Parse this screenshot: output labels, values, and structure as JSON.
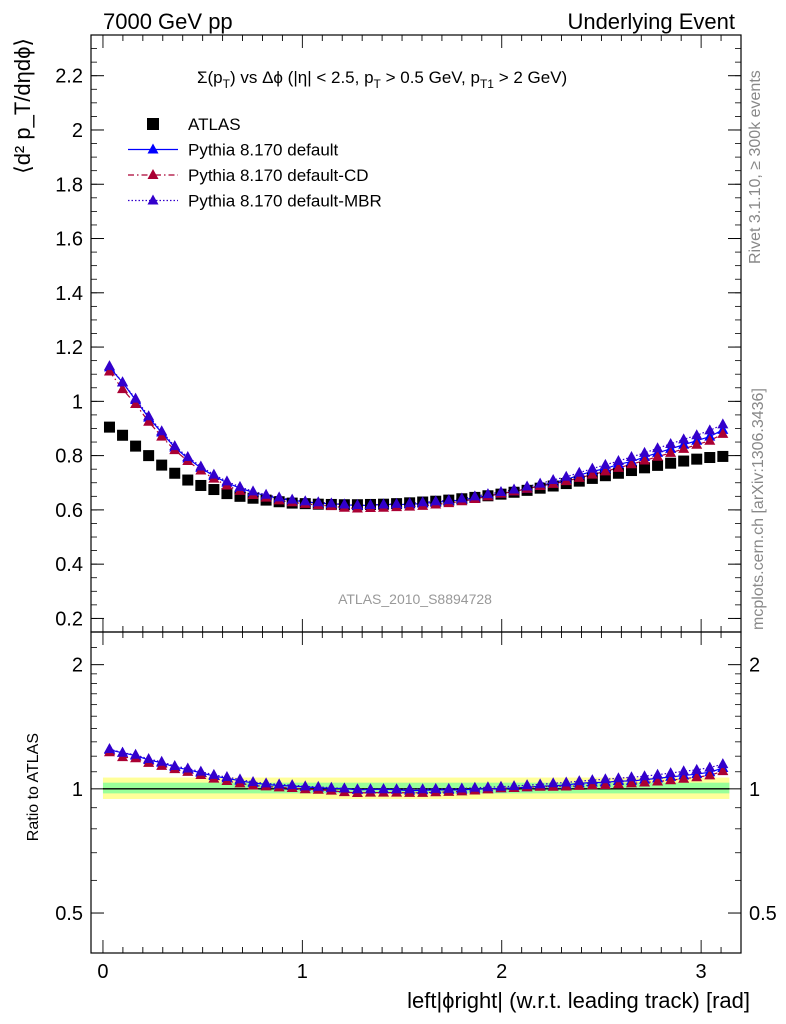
{
  "header": {
    "left": "7000 GeV pp",
    "right": "Underlying Event"
  },
  "side_labels": {
    "rivet": "Rivet 3.1.10, ≥ 300k events",
    "mcplots": "mcplots.cern.ch [arXiv:1306.3436]"
  },
  "annotation": {
    "analysis": "ATLAS_2010_S8894728"
  },
  "colors": {
    "atlas": "#000000",
    "default": "#0000ff",
    "default_cd": "#aa0033",
    "default_mbr": "#3300cc",
    "band_yellow": "#ffff99",
    "band_green": "#99ff99"
  },
  "chart_data": [
    {
      "type": "scatter",
      "panel": "main",
      "title": "Σ(p_T) vs Δϕ (|η| < 2.5, p_T > 0.5 GeV, p_T1 > 2 GeV)",
      "ylabel": "⟨d² p_T/dηdϕ⟩",
      "xlim": [
        -0.06,
        3.2
      ],
      "ylim": [
        0.15,
        2.35
      ],
      "yticks": [
        0.2,
        0.4,
        0.6,
        0.8,
        1.0,
        1.2,
        1.4,
        1.6,
        1.8,
        2.0,
        2.2
      ],
      "ytick_labels": [
        "0.2",
        "0.4",
        "0.6",
        "0.8",
        "1",
        "1.2",
        "1.4",
        "1.6",
        "1.8",
        "2",
        "2.2"
      ],
      "legend_position": "top-left",
      "x": [
        0.0327,
        0.0982,
        0.1636,
        0.2291,
        0.2945,
        0.36,
        0.4254,
        0.4909,
        0.5563,
        0.6218,
        0.6872,
        0.7527,
        0.8181,
        0.8836,
        0.949,
        1.0145,
        1.0799,
        1.1454,
        1.2108,
        1.2763,
        1.3417,
        1.4072,
        1.4726,
        1.5381,
        1.6035,
        1.669,
        1.7344,
        1.7999,
        1.8653,
        1.9308,
        1.9962,
        2.0617,
        2.1271,
        2.1926,
        2.258,
        2.3235,
        2.3889,
        2.4544,
        2.5198,
        2.5853,
        2.6507,
        2.7162,
        2.7816,
        2.8471,
        2.9125,
        2.978,
        3.0434,
        3.1089
      ],
      "series": [
        {
          "name": "ATLAS",
          "marker": "square",
          "values": [
            0.905,
            0.875,
            0.835,
            0.8,
            0.765,
            0.735,
            0.71,
            0.69,
            0.675,
            0.66,
            0.65,
            0.643,
            0.636,
            0.63,
            0.625,
            0.623,
            0.621,
            0.62,
            0.619,
            0.619,
            0.62,
            0.621,
            0.623,
            0.626,
            0.629,
            0.632,
            0.636,
            0.641,
            0.646,
            0.652,
            0.658,
            0.665,
            0.672,
            0.68,
            0.688,
            0.697,
            0.706,
            0.716,
            0.726,
            0.735,
            0.745,
            0.755,
            0.764,
            0.772,
            0.78,
            0.787,
            0.793,
            0.797
          ]
        },
        {
          "name": "Pythia 8.170 default",
          "marker": "triangle",
          "line": "solid",
          "values": [
            1.125,
            1.07,
            1.005,
            0.94,
            0.885,
            0.83,
            0.79,
            0.755,
            0.725,
            0.7,
            0.68,
            0.665,
            0.652,
            0.642,
            0.635,
            0.63,
            0.625,
            0.622,
            0.62,
            0.615,
            0.618,
            0.62,
            0.62,
            0.62,
            0.624,
            0.628,
            0.632,
            0.637,
            0.645,
            0.652,
            0.66,
            0.668,
            0.678,
            0.69,
            0.7,
            0.712,
            0.728,
            0.742,
            0.752,
            0.768,
            0.778,
            0.795,
            0.81,
            0.825,
            0.84,
            0.855,
            0.87,
            0.895
          ]
        },
        {
          "name": "Pythia 8.170 default-CD",
          "marker": "triangle",
          "line": "dashdot",
          "values": [
            1.11,
            1.045,
            0.99,
            0.925,
            0.87,
            0.82,
            0.78,
            0.745,
            0.715,
            0.69,
            0.67,
            0.655,
            0.645,
            0.635,
            0.628,
            0.622,
            0.618,
            0.614,
            0.608,
            0.605,
            0.607,
            0.608,
            0.61,
            0.612,
            0.615,
            0.62,
            0.625,
            0.632,
            0.64,
            0.65,
            0.66,
            0.668,
            0.678,
            0.688,
            0.696,
            0.706,
            0.718,
            0.73,
            0.742,
            0.755,
            0.768,
            0.782,
            0.796,
            0.81,
            0.825,
            0.84,
            0.855,
            0.88
          ]
        },
        {
          "name": "Pythia 8.170 default-MBR",
          "marker": "triangle",
          "line": "dotted",
          "values": [
            1.13,
            1.07,
            1.01,
            0.945,
            0.89,
            0.835,
            0.795,
            0.76,
            0.73,
            0.705,
            0.685,
            0.668,
            0.656,
            0.646,
            0.638,
            0.632,
            0.628,
            0.624,
            0.62,
            0.618,
            0.618,
            0.62,
            0.622,
            0.625,
            0.628,
            0.632,
            0.636,
            0.642,
            0.65,
            0.658,
            0.666,
            0.675,
            0.686,
            0.697,
            0.71,
            0.722,
            0.737,
            0.752,
            0.766,
            0.78,
            0.795,
            0.81,
            0.827,
            0.843,
            0.86,
            0.875,
            0.893,
            0.915
          ]
        }
      ]
    },
    {
      "type": "scatter",
      "panel": "ratio",
      "ylabel": "Ratio to ATLAS",
      "xlabel": "left|ϕright| (w.r.t. leading track) [rad]",
      "xlim": [
        -0.06,
        3.2
      ],
      "ylim": [
        0.4,
        2.4
      ],
      "log_y": true,
      "yticks": [
        0.5,
        1,
        2
      ],
      "ytick_labels": [
        "0.5",
        "1",
        "2"
      ],
      "xticks": [
        0,
        1,
        2,
        3
      ],
      "xtick_labels": [
        "0",
        "1",
        "2",
        "3"
      ],
      "band_yellow": [
        0.945,
        1.065
      ],
      "band_green": [
        0.975,
        1.035
      ],
      "series": [
        {
          "name": "Pythia 8.170 default",
          "values": [
            1.243,
            1.223,
            1.204,
            1.175,
            1.157,
            1.129,
            1.113,
            1.094,
            1.074,
            1.061,
            1.046,
            1.034,
            1.025,
            1.019,
            1.016,
            1.011,
            1.006,
            1.003,
            1.002,
            0.994,
            0.997,
            0.998,
            0.995,
            0.99,
            0.992,
            0.994,
            0.994,
            0.994,
            0.998,
            1.0,
            1.003,
            1.005,
            1.009,
            1.015,
            1.017,
            1.022,
            1.031,
            1.036,
            1.036,
            1.045,
            1.044,
            1.053,
            1.06,
            1.069,
            1.077,
            1.086,
            1.097,
            1.123
          ]
        },
        {
          "name": "Pythia 8.170 default-CD",
          "values": [
            1.227,
            1.194,
            1.186,
            1.156,
            1.137,
            1.116,
            1.099,
            1.08,
            1.059,
            1.045,
            1.031,
            1.019,
            1.014,
            1.008,
            1.005,
            0.998,
            0.995,
            0.99,
            0.982,
            0.977,
            0.979,
            0.979,
            0.979,
            0.978,
            0.978,
            0.981,
            0.983,
            0.986,
            0.991,
            0.997,
            1.003,
            1.005,
            1.009,
            1.012,
            1.012,
            1.013,
            1.017,
            1.02,
            1.022,
            1.027,
            1.031,
            1.036,
            1.042,
            1.049,
            1.058,
            1.067,
            1.078,
            1.104
          ]
        },
        {
          "name": "Pythia 8.170 default-MBR",
          "values": [
            1.249,
            1.223,
            1.21,
            1.181,
            1.163,
            1.136,
            1.12,
            1.101,
            1.081,
            1.068,
            1.054,
            1.039,
            1.031,
            1.025,
            1.021,
            1.014,
            1.011,
            1.006,
            1.002,
            0.998,
            0.997,
            0.998,
            0.998,
            0.998,
            0.998,
            1.0,
            1.0,
            1.002,
            1.006,
            1.009,
            1.012,
            1.015,
            1.021,
            1.025,
            1.032,
            1.036,
            1.044,
            1.05,
            1.055,
            1.061,
            1.067,
            1.073,
            1.082,
            1.092,
            1.103,
            1.112,
            1.126,
            1.148
          ]
        }
      ]
    }
  ]
}
